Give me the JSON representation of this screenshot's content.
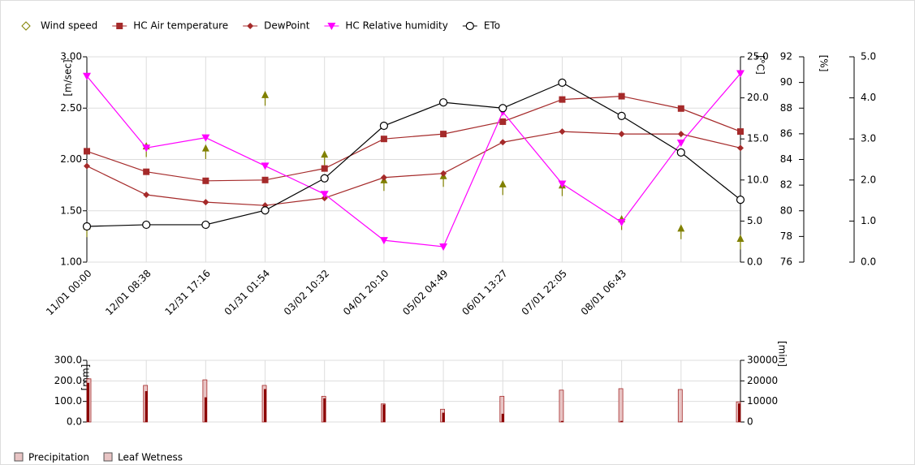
{
  "chart_data": [
    {
      "type": "line",
      "categories": [
        "11/01 00:00",
        "12/01 08:38",
        "12/31 17:16",
        "01/31 01:54",
        "03/02 10:32",
        "04/01 20:10",
        "05/02 04:49",
        "06/01 13:27",
        "07/01 22:05",
        "08/01 06:43",
        null,
        null
      ],
      "ylabel": "[m/sec]",
      "y2label": "[°C]",
      "y3label": "[%]",
      "ylim": [
        1.0,
        3.0
      ],
      "yticks": [
        {
          "value": 1.0,
          "label": "1.00"
        },
        {
          "value": 1.5,
          "label": "1.50"
        },
        {
          "value": 2.0,
          "label": "2.00"
        },
        {
          "value": 2.5,
          "label": "2.50"
        },
        {
          "value": 3.0,
          "label": "3.00"
        }
      ],
      "y2lim": [
        0,
        25
      ],
      "y2ticks": [
        {
          "value": 0,
          "label": "0.0"
        },
        {
          "value": 5,
          "label": "5.0"
        },
        {
          "value": 10,
          "label": "10.0"
        },
        {
          "value": 15,
          "label": "15.0"
        },
        {
          "value": 20,
          "label": "20.0"
        },
        {
          "value": 25,
          "label": "25.0"
        }
      ],
      "y3lim": [
        76,
        92
      ],
      "y3ticks": [
        76,
        78,
        80,
        82,
        84,
        86,
        88,
        90,
        92
      ],
      "y4lim": [
        0,
        5
      ],
      "y4ticks": [
        {
          "value": 0,
          "label": "0.0"
        },
        {
          "value": 1,
          "label": "1.0"
        },
        {
          "value": 2,
          "label": "2.0"
        },
        {
          "value": 3,
          "label": "3.0"
        },
        {
          "value": 4,
          "label": "4.0"
        },
        {
          "value": 5,
          "label": "5.0"
        }
      ],
      "grid": true,
      "series": [
        {
          "name": "Wind speed",
          "color": "#808000",
          "marker": "arrow",
          "axis": "y",
          "values": [
            1.37,
            2.15,
            2.13,
            2.65,
            2.07,
            1.82,
            1.86,
            1.78,
            1.77,
            1.44,
            1.35,
            1.25
          ]
        },
        {
          "name": "HC Air temperature",
          "color": "#a52a2a",
          "marker": "square",
          "axis": "y2",
          "values": [
            13.5,
            11.0,
            9.9,
            10.0,
            11.4,
            15.0,
            15.6,
            17.1,
            19.8,
            20.2,
            18.7,
            15.9
          ]
        },
        {
          "name": "DewPoint",
          "color": "#a52a2a",
          "marker": "diamond",
          "axis": "y2",
          "values": [
            11.7,
            8.2,
            7.3,
            6.9,
            7.8,
            10.3,
            10.8,
            14.6,
            15.9,
            15.6,
            15.6,
            13.9
          ]
        },
        {
          "name": "HC Relative humidity",
          "color": "#ff00ff",
          "marker": "triangle",
          "axis": "y3",
          "values": [
            90.5,
            84.9,
            85.7,
            83.5,
            81.3,
            77.7,
            77.2,
            87.7,
            82.1,
            79.1,
            85.3,
            90.7
          ]
        },
        {
          "name": "ETo",
          "color": "#000000",
          "marker": "circle",
          "axis": "y4",
          "values": [
            0.87,
            0.91,
            0.91,
            1.26,
            2.04,
            3.32,
            3.89,
            3.75,
            4.37,
            3.56,
            2.67,
            1.52
          ]
        }
      ]
    },
    {
      "type": "bar",
      "ylabel": "[mm]",
      "y2label": "[min]",
      "ylim": [
        0,
        300
      ],
      "yticks": [
        {
          "value": 0,
          "label": "0.0"
        },
        {
          "value": 100,
          "label": "100.0"
        },
        {
          "value": 200,
          "label": "200.0"
        },
        {
          "value": 300,
          "label": "300.0"
        }
      ],
      "y2lim": [
        0,
        30000
      ],
      "y2ticks": [
        0,
        10000,
        20000,
        30000
      ],
      "grid": true,
      "series": [
        {
          "name": "Precipitation",
          "color": "#8b0000",
          "axis": "y",
          "values": [
            190,
            150,
            120,
            160,
            115,
            85,
            45,
            40,
            5,
            5,
            3,
            90
          ]
        },
        {
          "name": "Leaf Wetness",
          "color": "#e8c4c4",
          "axis": "y2",
          "values": [
            21000,
            17800,
            20500,
            17800,
            12500,
            8800,
            6200,
            12500,
            15500,
            16200,
            15800,
            9800
          ]
        }
      ]
    }
  ]
}
